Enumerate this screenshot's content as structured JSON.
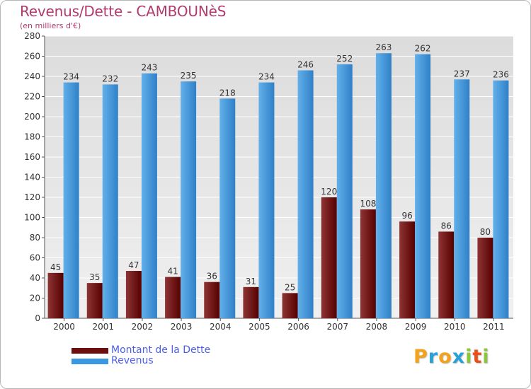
{
  "title": "Revenus/Dette - CAMBOUNèS",
  "subtitle": "(en milliers d'€)",
  "colors": {
    "debt_light": "#8e3434",
    "debt_dark": "#560000",
    "revenue_light": "#62b0ea",
    "revenue_dark": "#2f80c8",
    "title": "#b23a6e",
    "legend_text": "#4c5ee8",
    "grid": "#ffffff",
    "plot_bg": "#e8e8e8"
  },
  "legend": {
    "items": [
      {
        "label": "Montant de la Dette",
        "color": "#6b0f0f"
      },
      {
        "label": "Revenus",
        "color": "#3a97e2"
      }
    ]
  },
  "logo": {
    "letters": [
      "P",
      "r",
      "o",
      "x",
      "i",
      "t",
      "i"
    ],
    "colors": [
      "#f2a21c",
      "#27a1d8",
      "#f2a21c",
      "#27a1d8",
      "#8cc63f",
      "#e94e1b",
      "#8cc63f"
    ]
  },
  "chart_data": {
    "type": "bar",
    "categories": [
      "2000",
      "2001",
      "2002",
      "2003",
      "2004",
      "2005",
      "2006",
      "2007",
      "2008",
      "2009",
      "2010",
      "2011"
    ],
    "series": [
      {
        "name": "Montant de la Dette",
        "values": [
          45,
          35,
          47,
          41,
          36,
          31,
          25,
          120,
          108,
          96,
          86,
          80
        ]
      },
      {
        "name": "Revenus",
        "values": [
          234,
          232,
          243,
          235,
          218,
          234,
          246,
          252,
          263,
          262,
          237,
          236
        ]
      }
    ],
    "ylim": [
      0,
      280
    ],
    "yticks": [
      0,
      20,
      40,
      60,
      80,
      100,
      120,
      140,
      160,
      180,
      200,
      220,
      240,
      260,
      280
    ],
    "grid": true,
    "legend_position": "bottom-left"
  }
}
